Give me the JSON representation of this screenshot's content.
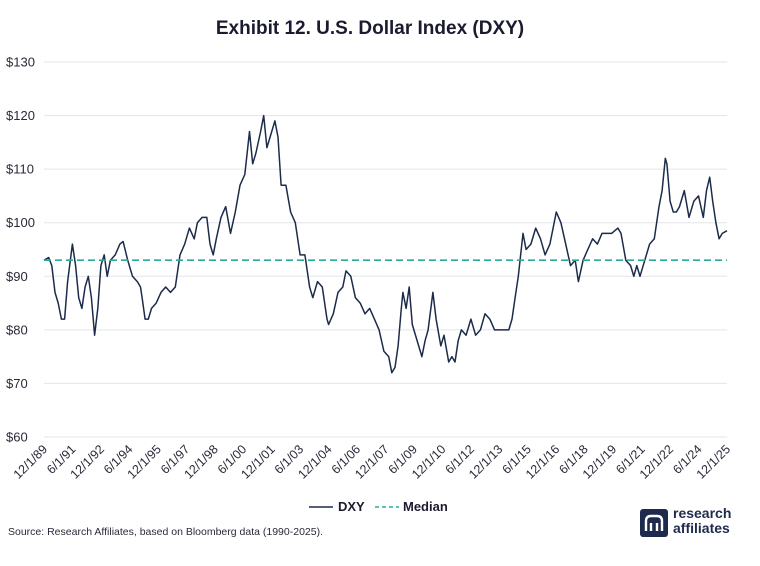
{
  "chart_data": {
    "type": "line",
    "title": "Exhibit 12. U.S. Dollar Index (DXY)",
    "y_ticks": [
      "$60",
      "$70",
      "$80",
      "$90",
      "$100",
      "$110",
      "$120",
      "$130"
    ],
    "ylim": [
      60,
      130
    ],
    "x_ticks": [
      "12/1/89",
      "6/1/91",
      "12/1/92",
      "6/1/94",
      "12/1/95",
      "6/1/97",
      "12/1/98",
      "6/1/00",
      "12/1/01",
      "6/1/03",
      "12/1/04",
      "6/1/06",
      "12/1/07",
      "6/1/09",
      "12/1/10",
      "6/1/12",
      "12/1/13",
      "6/1/15",
      "12/1/16",
      "6/1/18",
      "12/1/19",
      "6/1/21",
      "12/1/22",
      "6/1/24",
      "12/1/25"
    ],
    "grid": true,
    "legend_position": "bottom",
    "series": [
      {
        "name": "DXY",
        "color": "#1c2b4a",
        "style": "solid",
        "points": [
          [
            "1989-12-01",
            93
          ],
          [
            "1990-03-01",
            93.5
          ],
          [
            "1990-05-01",
            92
          ],
          [
            "1990-07-01",
            87
          ],
          [
            "1990-09-01",
            85
          ],
          [
            "1990-11-01",
            82
          ],
          [
            "1991-01-01",
            82
          ],
          [
            "1991-03-01",
            89
          ],
          [
            "1991-06-01",
            96
          ],
          [
            "1991-08-01",
            92
          ],
          [
            "1991-10-01",
            86
          ],
          [
            "1991-12-01",
            84
          ],
          [
            "1992-02-01",
            88
          ],
          [
            "1992-04-01",
            90
          ],
          [
            "1992-06-01",
            86
          ],
          [
            "1992-08-01",
            79
          ],
          [
            "1992-10-01",
            84
          ],
          [
            "1992-12-01",
            92
          ],
          [
            "1993-02-01",
            94
          ],
          [
            "1993-04-01",
            90
          ],
          [
            "1993-06-01",
            93
          ],
          [
            "1993-09-01",
            94
          ],
          [
            "1993-12-01",
            96
          ],
          [
            "1994-02-01",
            96.5
          ],
          [
            "1994-05-01",
            93
          ],
          [
            "1994-08-01",
            90
          ],
          [
            "1994-11-01",
            89
          ],
          [
            "1995-01-01",
            88
          ],
          [
            "1995-02-01",
            86
          ],
          [
            "1995-04-01",
            82
          ],
          [
            "1995-06-01",
            82
          ],
          [
            "1995-08-01",
            84
          ],
          [
            "1995-11-01",
            85
          ],
          [
            "1996-02-01",
            87
          ],
          [
            "1996-05-01",
            88
          ],
          [
            "1996-08-01",
            87
          ],
          [
            "1996-11-01",
            88
          ],
          [
            "1997-02-01",
            94
          ],
          [
            "1997-05-01",
            96
          ],
          [
            "1997-08-01",
            99
          ],
          [
            "1997-11-01",
            97
          ],
          [
            "1998-01-01",
            100
          ],
          [
            "1998-04-01",
            101
          ],
          [
            "1998-07-01",
            101
          ],
          [
            "1998-09-01",
            96
          ],
          [
            "1998-11-01",
            94
          ],
          [
            "1999-01-01",
            97
          ],
          [
            "1999-04-01",
            101
          ],
          [
            "1999-07-01",
            103
          ],
          [
            "1999-10-01",
            98
          ],
          [
            "2000-01-01",
            102
          ],
          [
            "2000-04-01",
            107
          ],
          [
            "2000-07-01",
            109
          ],
          [
            "2000-10-01",
            117
          ],
          [
            "2000-12-01",
            111
          ],
          [
            "2001-02-01",
            113
          ],
          [
            "2001-05-01",
            117
          ],
          [
            "2001-07-01",
            120
          ],
          [
            "2001-09-01",
            114
          ],
          [
            "2001-11-01",
            116
          ],
          [
            "2002-02-01",
            119
          ],
          [
            "2002-04-01",
            116
          ],
          [
            "2002-06-01",
            107
          ],
          [
            "2002-09-01",
            107
          ],
          [
            "2002-12-01",
            102
          ],
          [
            "2003-03-01",
            100
          ],
          [
            "2003-06-01",
            94
          ],
          [
            "2003-09-01",
            94
          ],
          [
            "2003-12-01",
            88
          ],
          [
            "2004-02-01",
            86
          ],
          [
            "2004-05-01",
            89
          ],
          [
            "2004-08-01",
            88
          ],
          [
            "2004-11-01",
            82
          ],
          [
            "2004-12-01",
            81
          ],
          [
            "2005-03-01",
            83
          ],
          [
            "2005-06-01",
            87
          ],
          [
            "2005-09-01",
            88
          ],
          [
            "2005-11-01",
            91
          ],
          [
            "2006-02-01",
            90
          ],
          [
            "2006-05-01",
            86
          ],
          [
            "2006-08-01",
            85
          ],
          [
            "2006-11-01",
            83
          ],
          [
            "2007-02-01",
            84
          ],
          [
            "2007-05-01",
            82
          ],
          [
            "2007-08-01",
            80
          ],
          [
            "2007-11-01",
            76
          ],
          [
            "2008-02-01",
            75
          ],
          [
            "2008-04-01",
            72
          ],
          [
            "2008-06-01",
            73
          ],
          [
            "2008-08-01",
            77
          ],
          [
            "2008-10-01",
            84
          ],
          [
            "2008-11-01",
            87
          ],
          [
            "2009-01-01",
            84
          ],
          [
            "2009-03-01",
            88
          ],
          [
            "2009-05-01",
            81
          ],
          [
            "2009-08-01",
            78
          ],
          [
            "2009-11-01",
            75
          ],
          [
            "2010-01-01",
            78
          ],
          [
            "2010-03-01",
            80
          ],
          [
            "2010-06-01",
            87
          ],
          [
            "2010-08-01",
            82
          ],
          [
            "2010-11-01",
            77
          ],
          [
            "2011-01-01",
            79
          ],
          [
            "2011-04-01",
            74
          ],
          [
            "2011-06-01",
            75
          ],
          [
            "2011-08-01",
            74
          ],
          [
            "2011-10-01",
            78
          ],
          [
            "2011-12-01",
            80
          ],
          [
            "2012-03-01",
            79
          ],
          [
            "2012-06-01",
            82
          ],
          [
            "2012-09-01",
            79
          ],
          [
            "2012-12-01",
            80
          ],
          [
            "2013-03-01",
            83
          ],
          [
            "2013-06-01",
            82
          ],
          [
            "2013-09-01",
            80
          ],
          [
            "2013-12-01",
            80
          ],
          [
            "2014-03-01",
            80
          ],
          [
            "2014-06-01",
            80
          ],
          [
            "2014-08-01",
            82
          ],
          [
            "2014-10-01",
            86
          ],
          [
            "2014-12-01",
            90
          ],
          [
            "2015-03-01",
            98
          ],
          [
            "2015-05-01",
            95
          ],
          [
            "2015-08-01",
            96
          ],
          [
            "2015-11-01",
            99
          ],
          [
            "2016-02-01",
            97
          ],
          [
            "2016-05-01",
            94
          ],
          [
            "2016-08-01",
            96
          ],
          [
            "2016-12-01",
            102
          ],
          [
            "2017-03-01",
            100
          ],
          [
            "2017-06-01",
            96
          ],
          [
            "2017-09-01",
            92
          ],
          [
            "2017-12-01",
            93
          ],
          [
            "2018-02-01",
            89
          ],
          [
            "2018-05-01",
            93
          ],
          [
            "2018-08-01",
            95
          ],
          [
            "2018-11-01",
            97
          ],
          [
            "2019-02-01",
            96
          ],
          [
            "2019-05-01",
            98
          ],
          [
            "2019-08-01",
            98
          ],
          [
            "2019-11-01",
            98
          ],
          [
            "2020-03-01",
            99
          ],
          [
            "2020-05-01",
            98
          ],
          [
            "2020-08-01",
            93
          ],
          [
            "2020-11-01",
            92
          ],
          [
            "2021-01-01",
            90
          ],
          [
            "2021-03-01",
            92
          ],
          [
            "2021-05-01",
            90
          ],
          [
            "2021-08-01",
            93
          ],
          [
            "2021-11-01",
            96
          ],
          [
            "2022-02-01",
            97
          ],
          [
            "2022-05-01",
            103
          ],
          [
            "2022-07-01",
            106
          ],
          [
            "2022-09-01",
            112
          ],
          [
            "2022-10-01",
            111
          ],
          [
            "2022-12-01",
            104
          ],
          [
            "2023-02-01",
            102
          ],
          [
            "2023-04-01",
            102
          ],
          [
            "2023-06-01",
            103
          ],
          [
            "2023-09-01",
            106
          ],
          [
            "2023-12-01",
            101
          ],
          [
            "2024-03-01",
            104
          ],
          [
            "2024-06-01",
            105
          ],
          [
            "2024-09-01",
            101
          ],
          [
            "2024-11-01",
            106
          ],
          [
            "2025-01-01",
            108.5
          ],
          [
            "2025-03-01",
            104
          ],
          [
            "2025-05-01",
            100
          ],
          [
            "2025-07-01",
            97
          ],
          [
            "2025-09-01",
            98
          ],
          [
            "2025-12-01",
            98.5
          ]
        ]
      },
      {
        "name": "Median",
        "color": "#2aab9a",
        "style": "dashed",
        "value": 93
      }
    ]
  },
  "legend": {
    "dxy_label": "DXY",
    "median_label": "Median"
  },
  "footer": {
    "source": "Source: Research Affiliates, based on Bloomberg data (1990-2025)."
  },
  "logo": {
    "line1": "research",
    "line2": "affiliates"
  }
}
